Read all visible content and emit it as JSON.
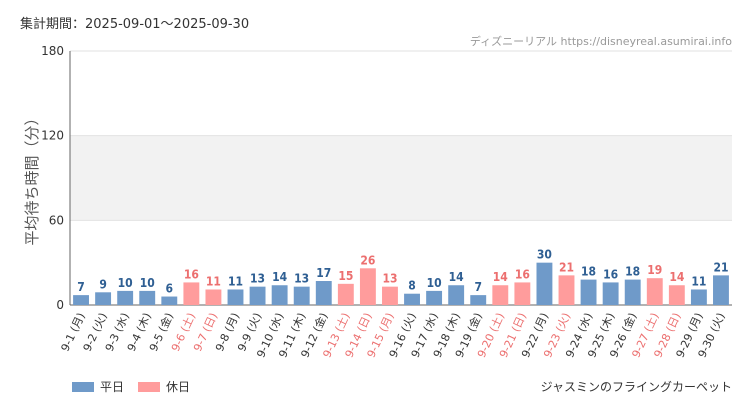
{
  "header": {
    "period": "集計期間：2025-09-01～2025-09-30",
    "source": "ディズニーリアル https://disneyreal.asumirai.info"
  },
  "legend": {
    "weekday_label": "平日",
    "holiday_label": "休日"
  },
  "caption": "ジャスミンのフライングカーペット",
  "colors": {
    "weekday": "#6f9ac9",
    "holiday": "#ff9c9c",
    "weekday_text": "#2f5f93",
    "holiday_text": "#ec6f6f",
    "band": "#f2f2f2",
    "grid": "#e2e2e2",
    "axis": "#666666"
  },
  "chart_data": {
    "type": "bar",
    "ylabel": "平均待ち時間（分）",
    "ylim": [
      0,
      180
    ],
    "yticks": [
      0,
      60,
      120,
      180
    ],
    "categories": [
      "9-1 (月)",
      "9-2 (火)",
      "9-3 (水)",
      "9-4 (木)",
      "9-5 (金)",
      "9-6 (土)",
      "9-7 (日)",
      "9-8 (月)",
      "9-9 (火)",
      "9-10 (水)",
      "9-11 (木)",
      "9-12 (金)",
      "9-13 (土)",
      "9-14 (日)",
      "9-15 (月)",
      "9-16 (火)",
      "9-17 (水)",
      "9-18 (木)",
      "9-19 (金)",
      "9-20 (土)",
      "9-21 (日)",
      "9-22 (月)",
      "9-23 (火)",
      "9-24 (水)",
      "9-25 (木)",
      "9-26 (金)",
      "9-27 (土)",
      "9-28 (日)",
      "9-29 (月)",
      "9-30 (火)"
    ],
    "values": [
      7,
      9,
      10,
      10,
      6,
      16,
      11,
      11,
      13,
      14,
      13,
      17,
      15,
      26,
      13,
      8,
      10,
      14,
      7,
      14,
      16,
      30,
      21,
      18,
      16,
      18,
      19,
      14,
      11,
      21
    ],
    "holiday": [
      false,
      false,
      false,
      false,
      false,
      true,
      true,
      false,
      false,
      false,
      false,
      false,
      true,
      true,
      true,
      false,
      false,
      false,
      false,
      true,
      true,
      false,
      true,
      false,
      false,
      false,
      true,
      true,
      false,
      false
    ],
    "grid": true,
    "legend_position": "bottom-left"
  }
}
